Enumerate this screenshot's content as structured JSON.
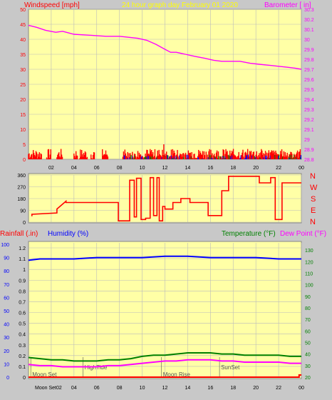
{
  "colors": {
    "background": "#c8c8c8",
    "plot_bg": "#ffffa6",
    "grid": "#bbbbbb",
    "wind": "#ff0000",
    "gust_blue": "#0000ff",
    "gust_green": "#008000",
    "barometer": "#ff00ff",
    "direction": "#ff0000",
    "rain": "#ff0000",
    "humidity": "#0000ff",
    "temperature": "#008000",
    "dewpoint": "#ff00ff",
    "title": "#ffff00",
    "compass": "#ff0000"
  },
  "header": {
    "left_title": "Windspeed [mph]",
    "center_title": "24 hour graph day   February 01 2020",
    "right_title": "Barometer [ in]"
  },
  "bottom_header": {
    "rain_label": "Rainfall (.in)",
    "humidity_label": "Humidity (%)",
    "temperature_label": "Temperature (°F)",
    "dewpoint_label": "Dew Point (°F)"
  },
  "compass": [
    "N",
    "W",
    "S",
    "E",
    "N"
  ],
  "chart_data": [
    {
      "type": "line",
      "name": "wind-barometer",
      "x_ticks": [
        "02",
        "04",
        "06",
        "08",
        "10",
        "12",
        "14",
        "16",
        "18",
        "20",
        "22",
        "00"
      ],
      "y_left": {
        "ticks": [
          0,
          5,
          10,
          15,
          20,
          25,
          30,
          35,
          40,
          45,
          50
        ],
        "range": [
          0,
          50
        ]
      },
      "y_right": {
        "ticks": [
          "28.8",
          "28.9",
          "29",
          "29.1",
          "29.2",
          "29.3",
          "29.4",
          "29.5",
          "29.6",
          "29.7",
          "29.8",
          "29.9",
          "30",
          "30.1",
          "30.2",
          "30.3"
        ],
        "range": [
          28.8,
          30.3
        ]
      },
      "series": [
        {
          "name": "Barometer",
          "axis": "right",
          "x": [
            0,
            0.7,
            1.5,
            2.4,
            3.0,
            4.0,
            5.5,
            6.8,
            8.0,
            8.8,
            9.6,
            10.4,
            11.2,
            12.0,
            12.5,
            13.0,
            13.8,
            14.6,
            15.5,
            16.3,
            17.0,
            17.8,
            18.6,
            19.5,
            20.3,
            21.2,
            22.0,
            22.8,
            23.5,
            24.0
          ],
          "y": [
            30.14,
            30.12,
            30.09,
            30.07,
            30.08,
            30.05,
            30.04,
            30.03,
            30.03,
            30.02,
            30.01,
            29.99,
            29.95,
            29.9,
            29.87,
            29.87,
            29.85,
            29.83,
            29.81,
            29.79,
            29.78,
            29.78,
            29.78,
            29.76,
            29.75,
            29.74,
            29.73,
            29.72,
            29.71,
            29.7
          ]
        }
      ],
      "wind_bars": {
        "sections_hours": [
          [
            0,
            1.2
          ],
          [
            1.6,
            2.0
          ],
          [
            2.5,
            3.0
          ],
          [
            4.0,
            4.3
          ],
          [
            4.5,
            5.2
          ],
          [
            5.5,
            5.8
          ],
          [
            6.5,
            7.0
          ],
          [
            8.3,
            24.0
          ]
        ],
        "typical_speed_mph": [
          0,
          3
        ],
        "max_gust_mph": 5
      }
    },
    {
      "type": "line",
      "name": "wind-direction",
      "x_ticks": [
        "02",
        "04",
        "06",
        "08",
        "10",
        "12",
        "14",
        "16",
        "18",
        "20",
        "22",
        "00"
      ],
      "y": {
        "ticks": [
          0,
          90,
          180,
          270,
          360
        ],
        "range": [
          0,
          360
        ]
      },
      "series": [
        {
          "name": "Direction",
          "x": [
            0.3,
            0.3,
            2.5,
            2.5,
            3.3,
            3.3,
            7.9,
            7.9,
            8.9,
            8.9,
            9.3,
            9.3,
            9.5,
            9.5,
            9.9,
            9.9,
            10.3,
            10.3,
            10.7,
            10.7,
            11.0,
            11.0,
            11.3,
            11.3,
            11.5,
            11.5,
            11.8,
            11.8,
            12.0,
            12.0,
            12.7,
            12.7,
            13.4,
            13.4,
            14.2,
            14.2,
            15.8,
            15.8,
            17.0,
            17.0,
            17.6,
            17.6,
            17.9,
            17.9,
            20.3,
            20.3,
            21.3,
            21.3,
            21.7,
            21.7,
            22.3,
            22.3,
            24.0
          ],
          "y": [
            45,
            60,
            70,
            100,
            160,
            150,
            150,
            10,
            10,
            320,
            320,
            40,
            40,
            335,
            335,
            20,
            20,
            30,
            30,
            340,
            340,
            50,
            50,
            340,
            340,
            10,
            10,
            120,
            120,
            100,
            100,
            150,
            150,
            180,
            180,
            150,
            150,
            50,
            50,
            240,
            240,
            350,
            350,
            350,
            350,
            300,
            300,
            340,
            340,
            20,
            20,
            300,
            300
          ]
        }
      ]
    },
    {
      "type": "line",
      "name": "rain-humidity-temperature",
      "x_ticks": [
        "02",
        "04",
        "06",
        "08",
        "10",
        "12",
        "14",
        "16",
        "18",
        "20",
        "22",
        "00"
      ],
      "y_left_outer": {
        "label": "Humidity (%)",
        "ticks": [
          0,
          10,
          20,
          30,
          40,
          50,
          60,
          70,
          80,
          90,
          100
        ],
        "range": [
          0,
          100
        ]
      },
      "y_left_inner": {
        "label": "Rainfall (.in)",
        "ticks": [
          "0",
          "0.1",
          "0.2",
          "0.3",
          "0.4",
          "0.5",
          "0.6",
          "0.7",
          "0.8",
          "0.9",
          "1",
          "1.1",
          "1.2"
        ],
        "range": [
          0,
          1.2
        ]
      },
      "y_right": {
        "label": "Temperature (°F)",
        "ticks": [
          20,
          30,
          40,
          50,
          60,
          70,
          80,
          90,
          100,
          110,
          120,
          130
        ],
        "range": [
          20,
          135
        ]
      },
      "series": [
        {
          "name": "Humidity",
          "x": [
            0,
            1,
            2,
            4,
            6,
            8,
            10,
            12,
            14,
            16,
            18,
            20,
            22,
            24
          ],
          "y": [
            88,
            89,
            89,
            89,
            90,
            90,
            90,
            91,
            91,
            90,
            90,
            90,
            89,
            89
          ]
        },
        {
          "name": "Temperature",
          "x": [
            0,
            1,
            2,
            3,
            4,
            5,
            6,
            7,
            8,
            9,
            10,
            11,
            12,
            13,
            14,
            15,
            16,
            17,
            18,
            19,
            20,
            21,
            22,
            23,
            24
          ],
          "y": [
            37,
            36,
            35,
            35,
            34,
            34,
            34,
            35,
            35,
            36,
            38,
            39,
            39,
            40,
            41,
            41,
            41,
            40,
            40,
            39,
            39,
            39,
            39,
            38,
            38
          ]
        },
        {
          "name": "Dew Point",
          "x": [
            0,
            1,
            2,
            3,
            4,
            5,
            6,
            7,
            8,
            9,
            10,
            11,
            12,
            13,
            14,
            15,
            16,
            17,
            18,
            19,
            20,
            21,
            22,
            23,
            24
          ],
          "y": [
            31,
            30,
            30,
            29,
            29,
            29,
            29,
            30,
            30,
            31,
            32,
            33,
            34,
            34,
            35,
            35,
            35,
            34,
            34,
            33,
            33,
            33,
            33,
            32,
            32
          ]
        },
        {
          "name": "Rainfall",
          "x": [
            0,
            23.8,
            23.8,
            24
          ],
          "y": [
            0,
            0,
            0.02,
            0.02
          ]
        }
      ],
      "events": [
        {
          "label": "Moon Set",
          "hour": 0.2,
          "row": "bottom"
        },
        {
          "label": "HighTide",
          "hour": 4.8,
          "row": "top"
        },
        {
          "label": "Moon Rise",
          "hour": 11.7,
          "row": "bottom"
        },
        {
          "label": "SunSet",
          "hour": 16.8,
          "row": "top"
        }
      ],
      "x_first_label": "Moon Set02"
    }
  ]
}
